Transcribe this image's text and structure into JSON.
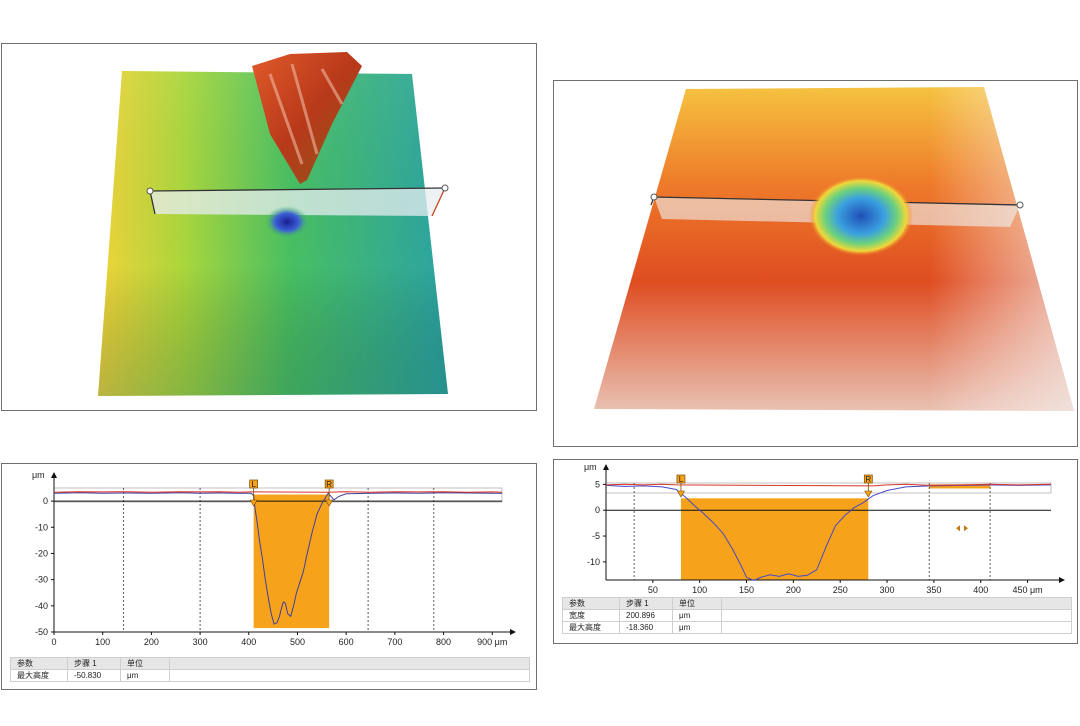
{
  "chart_data": [
    {
      "type": "line",
      "panel": "left-profile",
      "ylabel": "μm",
      "x_ticks": [
        "0",
        "100",
        "200",
        "300",
        "400",
        "500",
        "600",
        "700",
        "800",
        "900 μm"
      ],
      "y_ticks": [
        "0",
        "-10",
        "-20",
        "-30",
        "-40",
        "-50"
      ],
      "xlim": [
        0,
        920
      ],
      "ylim": [
        -50,
        5
      ],
      "markers": {
        "L": 410,
        "R": 565
      },
      "highlight": {
        "x": [
          410,
          565
        ],
        "y": [
          -48.5,
          2.5
        ],
        "color": "#F7A21B"
      },
      "dashed_x": [
        143,
        300,
        645,
        780
      ],
      "series": [
        {
          "color": "#3f3f9f",
          "x": [
            0,
            50,
            100,
            140,
            200,
            260,
            300,
            340,
            380,
            405,
            410,
            413,
            417,
            422,
            428,
            434,
            440,
            446,
            452,
            458,
            463,
            467,
            471,
            475,
            480,
            486,
            492,
            498,
            505,
            512,
            520,
            530,
            540,
            550,
            558,
            563,
            568,
            575,
            585,
            600,
            650,
            700,
            750,
            800,
            850,
            900,
            920
          ],
          "y": [
            3.0,
            3.2,
            3.0,
            3.1,
            3.0,
            3.2,
            3.0,
            3.1,
            3.0,
            3.0,
            2.0,
            -3,
            -8,
            -15,
            -22,
            -30,
            -37,
            -43,
            -47,
            -46.5,
            -44,
            -41,
            -38.5,
            -39,
            -43,
            -44,
            -40,
            -35,
            -31,
            -27,
            -20,
            -12,
            -5,
            -1,
            1.5,
            3.0,
            2.0,
            0.5,
            1.8,
            2.8,
            3.0,
            3.1,
            3.0,
            3.2,
            3.1,
            3.0,
            3.0
          ]
        },
        {
          "color": "#d4362a",
          "x": [
            0,
            50,
            100,
            140,
            200,
            260,
            300,
            340,
            380,
            405,
            565,
            585,
            600,
            650,
            700,
            750,
            800,
            850,
            900,
            920
          ],
          "y": [
            3.4,
            3.6,
            3.5,
            3.6,
            3.4,
            3.6,
            3.5,
            3.6,
            3.4,
            3.5,
            3.4,
            3.5,
            3.6,
            3.4,
            3.6,
            3.5,
            3.6,
            3.4,
            3.5,
            3.4
          ]
        }
      ],
      "table": {
        "headers": [
          "参数",
          "步骤 1",
          "单位"
        ],
        "rows": [
          [
            "最大高度",
            "-50.830",
            "μm"
          ]
        ]
      }
    },
    {
      "type": "line",
      "panel": "right-profile",
      "ylabel": "μm",
      "x_ticks": [
        "50",
        "100",
        "150",
        "200",
        "250",
        "300",
        "350",
        "400",
        "450 μm"
      ],
      "y_ticks": [
        "5",
        "0",
        "-5",
        "-10"
      ],
      "xlim": [
        0,
        475
      ],
      "ylim": [
        -13.5,
        7
      ],
      "markers": {
        "L": 80,
        "R": 280
      },
      "highlight": {
        "x": [
          80,
          280
        ],
        "y": [
          -13.5,
          2.3
        ],
        "color": "#F7A21B"
      },
      "highlight_top": {
        "x": [
          345,
          410
        ],
        "y": [
          4.2,
          5.0
        ],
        "color": "#F7A21B"
      },
      "dashed_x": [
        30,
        345,
        410
      ],
      "cursor_x": 380,
      "cursor_y": -3.5,
      "series": [
        {
          "color": "#4848c8",
          "x": [
            0,
            20,
            40,
            60,
            75,
            85,
            95,
            105,
            115,
            125,
            135,
            145,
            150,
            158,
            165,
            175,
            185,
            195,
            205,
            215,
            225,
            235,
            245,
            255,
            265,
            275,
            285,
            300,
            320,
            345,
            380,
            410,
            440,
            475
          ],
          "y": [
            4.8,
            4.6,
            4.7,
            4.5,
            4.0,
            2.5,
            0.8,
            -0.8,
            -2.5,
            -4.5,
            -7.5,
            -11,
            -13,
            -13.6,
            -13.0,
            -12.5,
            -12.8,
            -12.3,
            -12.8,
            -12.6,
            -11.5,
            -7,
            -3,
            -1.0,
            0.5,
            1.5,
            2.8,
            3.8,
            4.5,
            4.7,
            4.8,
            4.9,
            4.8,
            4.9
          ]
        },
        {
          "color": "#d4362a",
          "x": [
            0,
            20,
            40,
            60,
            75,
            285,
            300,
            320,
            345,
            380,
            410,
            440,
            475
          ],
          "y": [
            4.9,
            5.0,
            4.9,
            5.0,
            4.9,
            4.7,
            4.9,
            5.0,
            4.8,
            4.9,
            5.0,
            4.9,
            5.0
          ]
        }
      ],
      "table": {
        "headers": [
          "参数",
          "步骤 1",
          "单位"
        ],
        "rows": [
          [
            "宽度",
            "200.896",
            "μm"
          ],
          [
            "最大高度",
            "-18.360",
            "μm"
          ]
        ]
      }
    }
  ],
  "surfaces": {
    "left": {
      "palette": [
        "#f0d33a",
        "#9fd63e",
        "#3fb86d",
        "#2aa4a5"
      ],
      "peak_color": "#c8431f",
      "pit_color": "#1f2aa8"
    },
    "right": {
      "palette": [
        "#f6cf42",
        "#ef7c2b",
        "#dd4a1f",
        "#e8e2de"
      ],
      "pit_color": "#2e78c8"
    }
  }
}
